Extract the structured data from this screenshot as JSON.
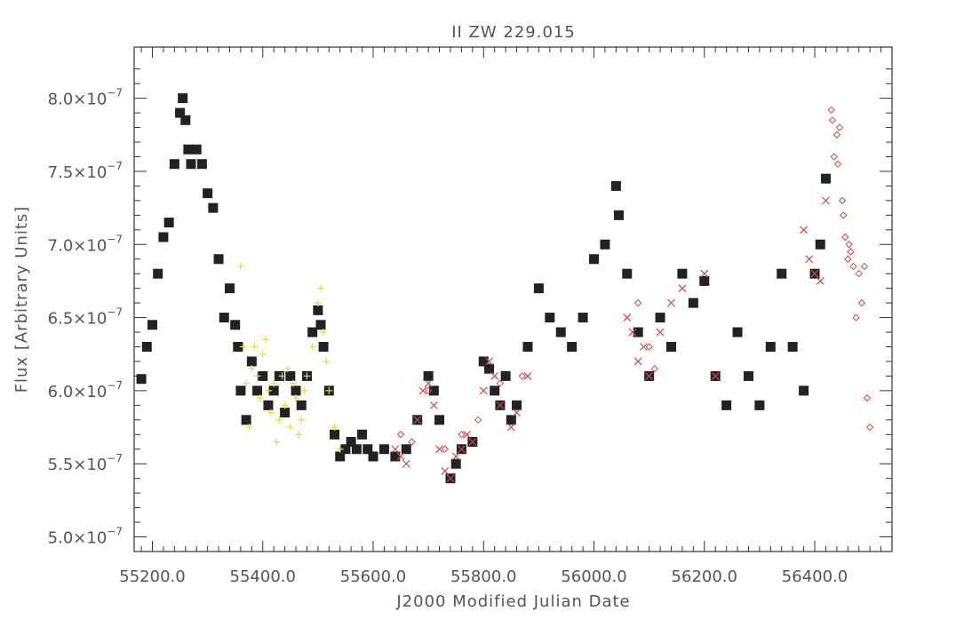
{
  "chart_data": {
    "type": "scatter",
    "title": "II ZW 229.015",
    "xlabel": "J2000 Modified Julian Date",
    "ylabel": "Flux [Arbitrary Units]",
    "xlim": [
      55167,
      56540
    ],
    "ylim": [
      4.9e-07,
      8.35e-07
    ],
    "x_ticks": [
      55200,
      55400,
      55600,
      55800,
      56000,
      56200,
      56400
    ],
    "x_tick_labels": [
      "55200.0",
      "55400.0",
      "55600.0",
      "55800.0",
      "56000.0",
      "56200.0",
      "56400.0"
    ],
    "y_ticks": [
      5e-07,
      5.5e-07,
      6e-07,
      6.5e-07,
      7e-07,
      7.5e-07,
      8e-07
    ],
    "y_tick_labels": [
      {
        "mantissa": "5.0×10",
        "exponent": "−7"
      },
      {
        "mantissa": "5.5×10",
        "exponent": "−7"
      },
      {
        "mantissa": "6.0×10",
        "exponent": "−7"
      },
      {
        "mantissa": "6.5×10",
        "exponent": "−7"
      },
      {
        "mantissa": "7.0×10",
        "exponent": "−7"
      },
      {
        "mantissa": "7.5×10",
        "exponent": "−7"
      },
      {
        "mantissa": "8.0×10",
        "exponent": "−7"
      }
    ],
    "grid": false,
    "series": [
      {
        "marker": "square",
        "color": "#222222",
        "x": [
          55180,
          55190,
          55200,
          55210,
          55220,
          55230,
          55240,
          55250,
          55255,
          55260,
          55265,
          55270,
          55280,
          55290,
          55300,
          55310,
          55320,
          55330,
          55340,
          55350,
          55355,
          55360,
          55370,
          55380,
          55390,
          55400,
          55410,
          55420,
          55430,
          55440,
          55450,
          55460,
          55470,
          55480,
          55490,
          55500,
          55505,
          55510,
          55520,
          55530,
          55540,
          55550,
          55560,
          55570,
          55580,
          55590,
          55600,
          55620,
          55640,
          55660,
          55680,
          55700,
          55710,
          55720,
          55740,
          55750,
          55760,
          55780,
          55800,
          55810,
          55820,
          55830,
          55840,
          55850,
          55860,
          55880,
          55900,
          55920,
          55940,
          55960,
          55980,
          56000,
          56020,
          56040,
          56045,
          56060,
          56080,
          56100,
          56120,
          56140,
          56160,
          56180,
          56200,
          56220,
          56240,
          56260,
          56280,
          56300,
          56320,
          56340,
          56360,
          56380,
          56400,
          56410,
          56420
        ],
        "y": [
          6.08e-07,
          6.3e-07,
          6.45e-07,
          6.8e-07,
          7.05e-07,
          7.15e-07,
          7.55e-07,
          7.9e-07,
          8e-07,
          7.85e-07,
          7.65e-07,
          7.55e-07,
          7.65e-07,
          7.55e-07,
          7.35e-07,
          7.25e-07,
          6.9e-07,
          6.5e-07,
          6.7e-07,
          6.45e-07,
          6.3e-07,
          6e-07,
          5.8e-07,
          6.2e-07,
          6e-07,
          6.1e-07,
          5.9e-07,
          6e-07,
          6.1e-07,
          5.85e-07,
          6.1e-07,
          6e-07,
          5.9e-07,
          6.1e-07,
          6.4e-07,
          6.55e-07,
          6.45e-07,
          6.3e-07,
          6e-07,
          5.7e-07,
          5.55e-07,
          5.6e-07,
          5.65e-07,
          5.6e-07,
          5.7e-07,
          5.6e-07,
          5.55e-07,
          5.6e-07,
          5.55e-07,
          5.6e-07,
          5.8e-07,
          6.1e-07,
          6e-07,
          5.8e-07,
          5.4e-07,
          5.5e-07,
          5.6e-07,
          5.65e-07,
          6.2e-07,
          6.15e-07,
          6e-07,
          5.9e-07,
          6.1e-07,
          5.8e-07,
          5.9e-07,
          6.3e-07,
          6.7e-07,
          6.5e-07,
          6.4e-07,
          6.3e-07,
          6.5e-07,
          6.9e-07,
          7e-07,
          7.4e-07,
          7.2e-07,
          6.8e-07,
          6.4e-07,
          6.1e-07,
          6.5e-07,
          6.3e-07,
          6.8e-07,
          6.6e-07,
          6.75e-07,
          6.1e-07,
          5.9e-07,
          6.4e-07,
          6.1e-07,
          5.9e-07,
          6.3e-07,
          6.8e-07,
          6.3e-07,
          6e-07,
          6.8e-07,
          7e-07,
          7.45e-07
        ]
      },
      {
        "marker": "plus",
        "color": "#e6dc3c",
        "x": [
          55360,
          55365,
          55370,
          55375,
          55380,
          55385,
          55390,
          55395,
          55400,
          55405,
          55410,
          55415,
          55420,
          55425,
          55430,
          55435,
          55440,
          55445,
          55450,
          55455,
          55460,
          55465,
          55470,
          55475,
          55480,
          55490,
          55500,
          55505,
          55510,
          55515,
          55520,
          55530,
          55540
        ],
        "y": [
          6.85e-07,
          6.3e-07,
          6.05e-07,
          5.75e-07,
          6.15e-07,
          6.3e-07,
          6.1e-07,
          5.95e-07,
          6.25e-07,
          6.35e-07,
          6e-07,
          5.85e-07,
          6.05e-07,
          5.65e-07,
          5.8e-07,
          6.1e-07,
          5.9e-07,
          6.15e-07,
          5.75e-07,
          6.05e-07,
          5.95e-07,
          5.7e-07,
          5.8e-07,
          6e-07,
          6.1e-07,
          6.3e-07,
          6.6e-07,
          6.7e-07,
          6.4e-07,
          6.2e-07,
          6e-07,
          5.75e-07,
          5.6e-07
        ]
      },
      {
        "marker": "cross",
        "color": "#d04848",
        "x": [
          55640,
          55650,
          55660,
          55680,
          55690,
          55700,
          55710,
          55720,
          55730,
          55740,
          55750,
          55760,
          55770,
          55780,
          55800,
          55810,
          55820,
          55830,
          55850,
          55860,
          55880,
          56060,
          56070,
          56080,
          56090,
          56100,
          56120,
          56140,
          56160,
          56200,
          56220,
          56380,
          56390,
          56400,
          56410,
          56420
        ],
        "y": [
          5.6e-07,
          5.55e-07,
          5.5e-07,
          5.8e-07,
          6e-07,
          6.05e-07,
          5.9e-07,
          5.6e-07,
          5.45e-07,
          5.4e-07,
          5.55e-07,
          5.6e-07,
          5.7e-07,
          5.65e-07,
          6e-07,
          6.2e-07,
          6.1e-07,
          5.9e-07,
          5.75e-07,
          5.85e-07,
          6.1e-07,
          6.5e-07,
          6.4e-07,
          6.2e-07,
          6.3e-07,
          6.1e-07,
          6.4e-07,
          6.6e-07,
          6.7e-07,
          6.8e-07,
          6.1e-07,
          7.1e-07,
          6.9e-07,
          6.8e-07,
          6.75e-07,
          7.3e-07
        ]
      },
      {
        "marker": "diamond",
        "color": "#d04848",
        "x": [
          55650,
          55670,
          55700,
          55730,
          55760,
          55790,
          55830,
          55870,
          56080,
          56100,
          56110,
          56430,
          56432,
          56435,
          56440,
          56442,
          56445,
          56450,
          56452,
          56455,
          56460,
          56462,
          56465,
          56470,
          56475,
          56480,
          56485,
          56490,
          56495,
          56500
        ],
        "y": [
          5.7e-07,
          5.65e-07,
          6e-07,
          5.6e-07,
          5.7e-07,
          5.8e-07,
          6.05e-07,
          6.1e-07,
          6.6e-07,
          6.3e-07,
          6.15e-07,
          7.92e-07,
          7.85e-07,
          7.6e-07,
          7.75e-07,
          7.55e-07,
          7.8e-07,
          7.3e-07,
          7.2e-07,
          7.05e-07,
          6.9e-07,
          7e-07,
          6.95e-07,
          6.85e-07,
          6.5e-07,
          6.8e-07,
          6.6e-07,
          6.85e-07,
          5.95e-07,
          5.75e-07
        ]
      }
    ]
  }
}
